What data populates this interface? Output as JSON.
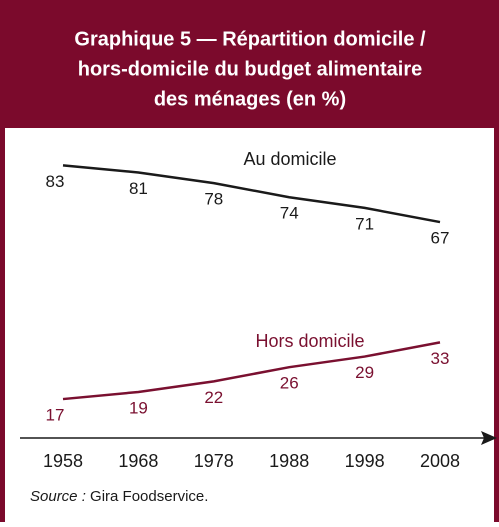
{
  "chart_data": {
    "type": "line",
    "title": [
      "Graphique 5 — Répartition domicile /",
      "hors-domicile du budget alimentaire",
      "des ménages (en %)"
    ],
    "categories": [
      "1958",
      "1968",
      "1978",
      "1988",
      "1998",
      "2008"
    ],
    "series": [
      {
        "name": "Au domicile",
        "color": "#1a1a1a",
        "values": [
          83,
          81,
          78,
          74,
          71,
          67
        ]
      },
      {
        "name": "Hors domicile",
        "color": "#7a1030",
        "values": [
          17,
          19,
          22,
          26,
          29,
          33
        ]
      }
    ],
    "ylim": [
      6,
      93
    ],
    "source_label": "Source :",
    "source_text": "Gira Foodservice."
  }
}
